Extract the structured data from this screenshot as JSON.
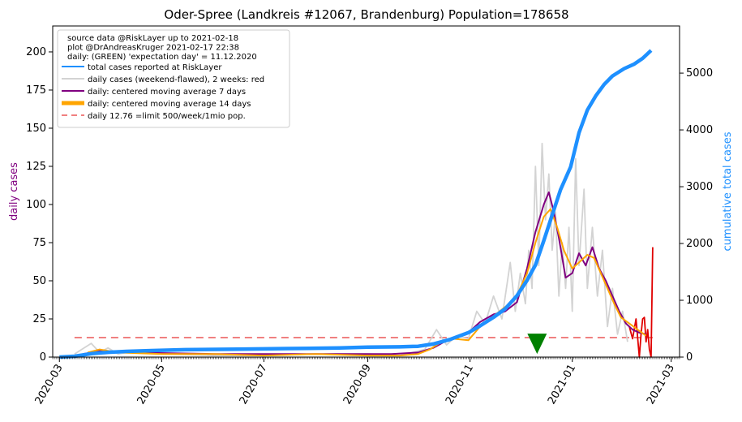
{
  "chart_data": {
    "type": "line",
    "title": "Oder-Spree (Landkreis #12067, Brandenburg) Population=178658",
    "ylabel_left": "daily cases",
    "ylabel_right": "cumulative total cases",
    "ylim_left": [
      0,
      217
    ],
    "ylim_right": [
      0,
      5830
    ],
    "xlim": [
      "2020-02-26",
      "2021-03-06"
    ],
    "yticks_left": [
      0,
      25,
      50,
      75,
      100,
      125,
      150,
      175,
      200
    ],
    "yticks_right": [
      0,
      1000,
      2000,
      3000,
      4000,
      5000
    ],
    "xticks": [
      "2020-03",
      "2020-05",
      "2020-07",
      "2020-09",
      "2020-11",
      "2021-01",
      "2021-03"
    ],
    "legend": {
      "placement": "top-left",
      "notes": [
        "source data @RiskLayer up to 2021-02-18",
        "plot @DrAndreasKruger 2021-02-17 22:38",
        "daily: (GREEN) 'expectation day' = 11.12.2020"
      ],
      "entries": [
        {
          "label": "total cases reported at RiskLayer",
          "color": "#1e90ff",
          "style": "line"
        },
        {
          "label": "daily cases (weekend-flawed), 2 weeks: red",
          "color": "#d3d3d3",
          "style": "line"
        },
        {
          "label": "daily: centered moving average 7 days",
          "color": "#800080",
          "style": "line"
        },
        {
          "label": "daily: centered moving average 14 days",
          "color": "#ffa500",
          "style": "thick"
        },
        {
          "label": "daily 12.76 =limit 500/week/1mio pop.",
          "color": "#f08080",
          "style": "dashed"
        }
      ]
    },
    "limit_line": {
      "value": 12.76,
      "x_start": "2020-03-10",
      "x_end": "2021-02-18"
    },
    "expectation_marker": {
      "x": "2020-12-11",
      "y": 9,
      "color": "#008000"
    },
    "series": [
      {
        "name": "total cases reported at RiskLayer",
        "axis": "right",
        "color": "#1e90ff",
        "x": [
          "2020-03-01",
          "2020-03-10",
          "2020-03-20",
          "2020-03-30",
          "2020-04-10",
          "2020-04-25",
          "2020-05-15",
          "2020-06-15",
          "2020-07-15",
          "2020-08-15",
          "2020-09-01",
          "2020-09-20",
          "2020-10-01",
          "2020-10-10",
          "2020-10-20",
          "2020-10-31",
          "2020-11-07",
          "2020-11-15",
          "2020-11-22",
          "2020-11-29",
          "2020-12-05",
          "2020-12-10",
          "2020-12-15",
          "2020-12-20",
          "2020-12-25",
          "2020-12-31",
          "2021-01-05",
          "2021-01-10",
          "2021-01-15",
          "2021-01-20",
          "2021-01-25",
          "2021-02-01",
          "2021-02-07",
          "2021-02-12",
          "2021-02-17"
        ],
        "values": [
          0,
          15,
          60,
          85,
          100,
          115,
          130,
          140,
          150,
          160,
          175,
          180,
          190,
          230,
          310,
          430,
          550,
          700,
          850,
          1080,
          1350,
          1620,
          2050,
          2500,
          2950,
          3350,
          3950,
          4350,
          4600,
          4800,
          4950,
          5080,
          5160,
          5260,
          5400
        ]
      },
      {
        "name": "daily cases (weekend-flawed), 2 weeks: red",
        "axis": "left",
        "color": "#d3d3d3",
        "x": [
          "2020-03-10",
          "2020-03-20",
          "2020-03-25",
          "2020-03-30",
          "2020-04-05",
          "2020-04-15",
          "2020-05-01",
          "2020-06-01",
          "2020-07-01",
          "2020-08-01",
          "2020-09-01",
          "2020-09-20",
          "2020-10-05",
          "2020-10-12",
          "2020-10-18",
          "2020-10-24",
          "2020-10-31",
          "2020-11-05",
          "2020-11-10",
          "2020-11-15",
          "2020-11-20",
          "2020-11-25",
          "2020-11-28",
          "2020-12-01",
          "2020-12-04",
          "2020-12-06",
          "2020-12-08",
          "2020-12-10",
          "2020-12-12",
          "2020-12-14",
          "2020-12-16",
          "2020-12-18",
          "2020-12-20",
          "2020-12-22",
          "2020-12-24",
          "2020-12-26",
          "2020-12-28",
          "2020-12-30",
          "2021-01-01",
          "2021-01-03",
          "2021-01-05",
          "2021-01-08",
          "2021-01-10",
          "2021-01-13",
          "2021-01-16",
          "2021-01-19",
          "2021-01-22",
          "2021-01-25",
          "2021-01-28",
          "2021-01-31",
          "2021-02-03"
        ],
        "values": [
          2,
          9,
          3,
          6,
          2,
          4,
          2,
          1,
          1,
          2,
          2,
          1,
          5,
          18,
          8,
          14,
          12,
          30,
          22,
          40,
          25,
          62,
          30,
          55,
          35,
          70,
          45,
          125,
          60,
          140,
          90,
          120,
          70,
          95,
          40,
          75,
          45,
          85,
          30,
          130,
          60,
          110,
          45,
          85,
          40,
          70,
          20,
          45,
          15,
          30,
          10
        ]
      },
      {
        "name": "daily 2 weeks red",
        "axis": "left",
        "color": "#e00000",
        "x": [
          "2021-02-04",
          "2021-02-06",
          "2021-02-08",
          "2021-02-10",
          "2021-02-11",
          "2021-02-12",
          "2021-02-13",
          "2021-02-14",
          "2021-02-15",
          "2021-02-16",
          "2021-02-17",
          "2021-02-18"
        ],
        "values": [
          20,
          12,
          25,
          0,
          15,
          25,
          26,
          10,
          18,
          5,
          0,
          72
        ]
      },
      {
        "name": "daily: centered moving average 7 days",
        "axis": "left",
        "color": "#800080",
        "x": [
          "2020-03-15",
          "2020-03-25",
          "2020-04-10",
          "2020-06-01",
          "2020-08-01",
          "2020-09-15",
          "2020-10-01",
          "2020-10-10",
          "2020-10-20",
          "2020-10-31",
          "2020-11-07",
          "2020-11-15",
          "2020-11-22",
          "2020-11-29",
          "2020-12-05",
          "2020-12-10",
          "2020-12-15",
          "2020-12-18",
          "2020-12-21",
          "2020-12-24",
          "2020-12-28",
          "2021-01-01",
          "2021-01-05",
          "2021-01-09",
          "2021-01-13",
          "2021-01-17",
          "2021-01-21",
          "2021-01-25",
          "2021-01-29",
          "2021-02-02",
          "2021-02-06",
          "2021-02-10",
          "2021-02-14"
        ],
        "values": [
          2,
          4,
          3,
          2,
          2,
          2,
          3,
          6,
          12,
          16,
          23,
          28,
          30,
          36,
          58,
          82,
          100,
          108,
          95,
          78,
          52,
          55,
          68,
          60,
          72,
          58,
          50,
          40,
          30,
          22,
          18,
          16,
          15
        ]
      },
      {
        "name": "daily: centered moving average 14 days",
        "axis": "left",
        "color": "#ffa500",
        "x": [
          "2020-03-18",
          "2020-03-25",
          "2020-04-05",
          "2020-05-01",
          "2020-06-01",
          "2020-07-01",
          "2020-08-01",
          "2020-09-01",
          "2020-09-20",
          "2020-10-01",
          "2020-10-08",
          "2020-10-15",
          "2020-10-22",
          "2020-10-31",
          "2020-11-07",
          "2020-11-14",
          "2020-11-21",
          "2020-11-28",
          "2020-12-05",
          "2020-12-10",
          "2020-12-15",
          "2020-12-19",
          "2020-12-23",
          "2020-12-27",
          "2021-01-01",
          "2021-01-05",
          "2021-01-10",
          "2021-01-14",
          "2021-01-18",
          "2021-01-22",
          "2021-01-26",
          "2021-01-30",
          "2021-02-04",
          "2021-02-09",
          "2021-02-14"
        ],
        "values": [
          3,
          5,
          3,
          2,
          2,
          1,
          2,
          1,
          1,
          2,
          5,
          10,
          12,
          11,
          20,
          26,
          32,
          38,
          55,
          75,
          92,
          97,
          85,
          70,
          58,
          62,
          67,
          65,
          55,
          45,
          35,
          26,
          22,
          18,
          14
        ]
      }
    ]
  }
}
